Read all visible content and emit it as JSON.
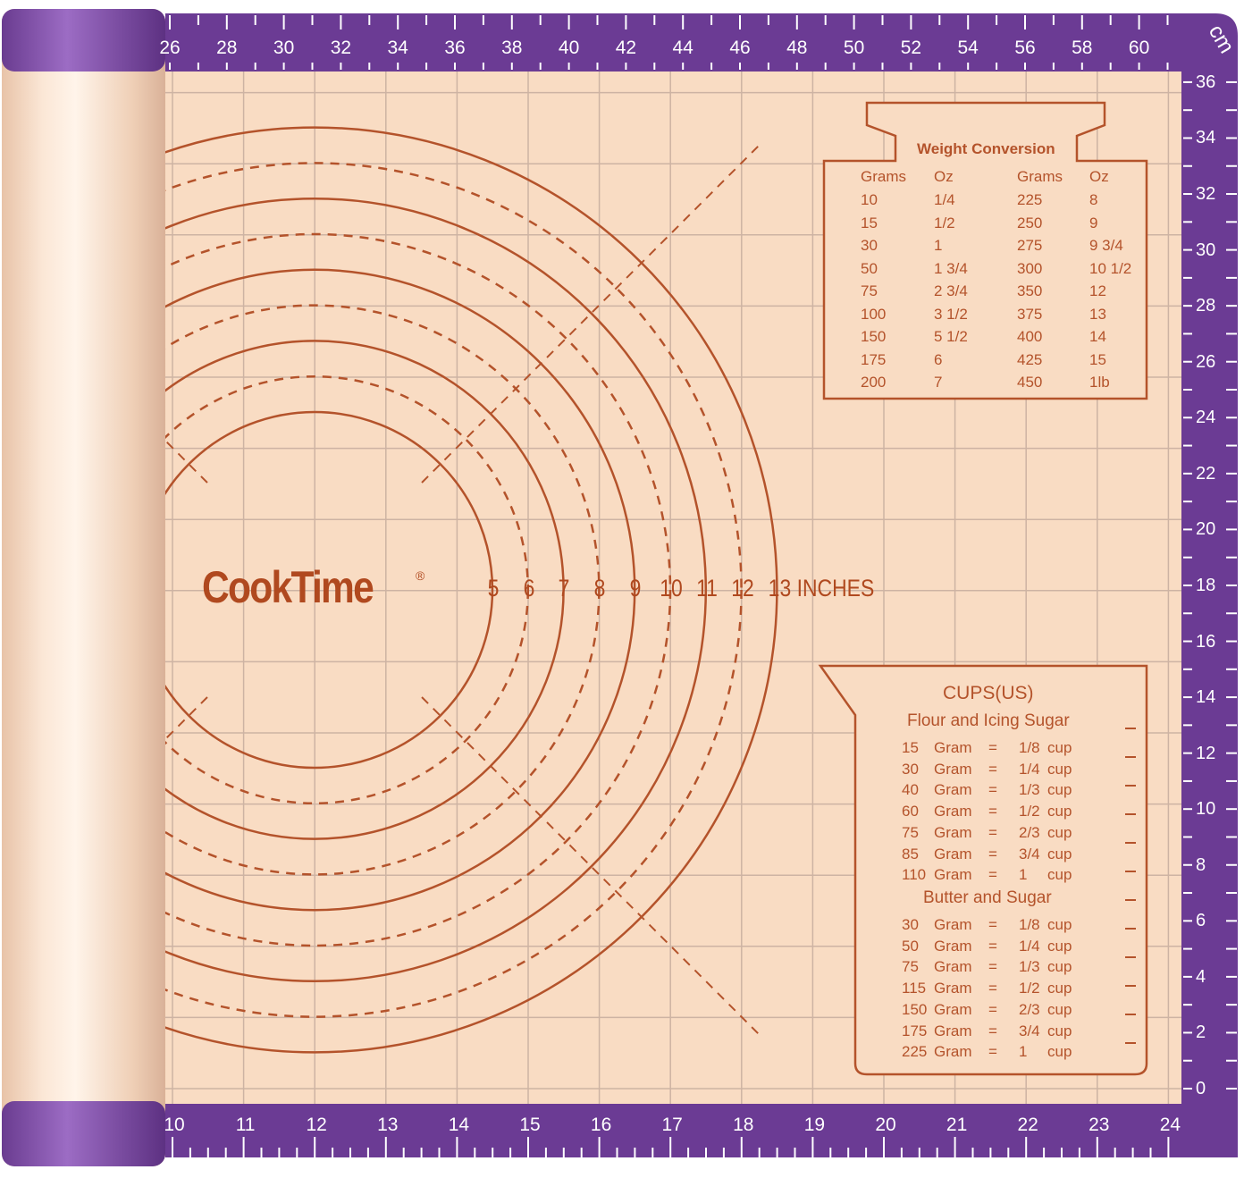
{
  "brand": {
    "logo_text": "CookTime",
    "registered_mark": "®"
  },
  "colors": {
    "purple": "#6b3b94",
    "mat": "#f9dcc3",
    "print": "#b4532b",
    "grid": "#cdb3a3"
  },
  "top_axis": {
    "unit": "cm",
    "labels": [
      "26",
      "28",
      "30",
      "32",
      "34",
      "36",
      "38",
      "40",
      "42",
      "44",
      "46",
      "48",
      "50",
      "52",
      "54",
      "56",
      "58",
      "60"
    ]
  },
  "right_axis": {
    "labels": [
      "36",
      "34",
      "32",
      "30",
      "28",
      "26",
      "24",
      "22",
      "20",
      "18",
      "16",
      "14",
      "12",
      "10",
      "8",
      "6",
      "4",
      "2",
      "0"
    ]
  },
  "bottom_axis": {
    "labels": [
      "10",
      "11",
      "12",
      "13",
      "14",
      "15",
      "16",
      "17",
      "18",
      "19",
      "20",
      "21",
      "22",
      "23",
      "24"
    ]
  },
  "circle_labels": [
    "5",
    "6",
    "7",
    "8",
    "9",
    "10",
    "11",
    "12",
    "13 INCHES"
  ],
  "weight_conversion": {
    "title": "Weight Conversion",
    "headers": [
      "Grams",
      "Oz",
      "Grams",
      "Oz"
    ],
    "rows": [
      [
        "10",
        "1/4",
        "225",
        "8"
      ],
      [
        "15",
        "1/2",
        "250",
        "9"
      ],
      [
        "30",
        "1",
        "275",
        "9 3/4"
      ],
      [
        "50",
        "1 3/4",
        "300",
        "10 1/2"
      ],
      [
        "75",
        "2 3/4",
        "350",
        "12"
      ],
      [
        "100",
        "3 1/2",
        "375",
        "13"
      ],
      [
        "150",
        "5 1/2",
        "400",
        "14"
      ],
      [
        "175",
        "6",
        "425",
        "15"
      ],
      [
        "200",
        "7",
        "450",
        "1lb"
      ]
    ]
  },
  "cups": {
    "title": "CUPS(US)",
    "sections": [
      {
        "heading": "Flour and Icing Sugar",
        "rows": [
          [
            "15",
            "Gram",
            "=",
            "1/8",
            "cup"
          ],
          [
            "30",
            "Gram",
            "=",
            "1/4",
            "cup"
          ],
          [
            "40",
            "Gram",
            "=",
            "1/3",
            "cup"
          ],
          [
            "60",
            "Gram",
            "=",
            "1/2",
            "cup"
          ],
          [
            "75",
            "Gram",
            "=",
            "2/3",
            "cup"
          ],
          [
            "85",
            "Gram",
            "=",
            "3/4",
            "cup"
          ],
          [
            "110",
            "Gram",
            "=",
            "1",
            "cup"
          ]
        ]
      },
      {
        "heading": "Butter and Sugar",
        "rows": [
          [
            "30",
            "Gram",
            "=",
            "1/8",
            "cup"
          ],
          [
            "50",
            "Gram",
            "=",
            "1/4",
            "cup"
          ],
          [
            "75",
            "Gram",
            "=",
            "1/3",
            "cup"
          ],
          [
            "115",
            "Gram",
            "=",
            "1/2",
            "cup"
          ],
          [
            "150",
            "Gram",
            "=",
            "2/3",
            "cup"
          ],
          [
            "175",
            "Gram",
            "=",
            "3/4",
            "cup"
          ],
          [
            "225",
            "Gram",
            "=",
            "1",
            "cup"
          ]
        ]
      }
    ]
  }
}
